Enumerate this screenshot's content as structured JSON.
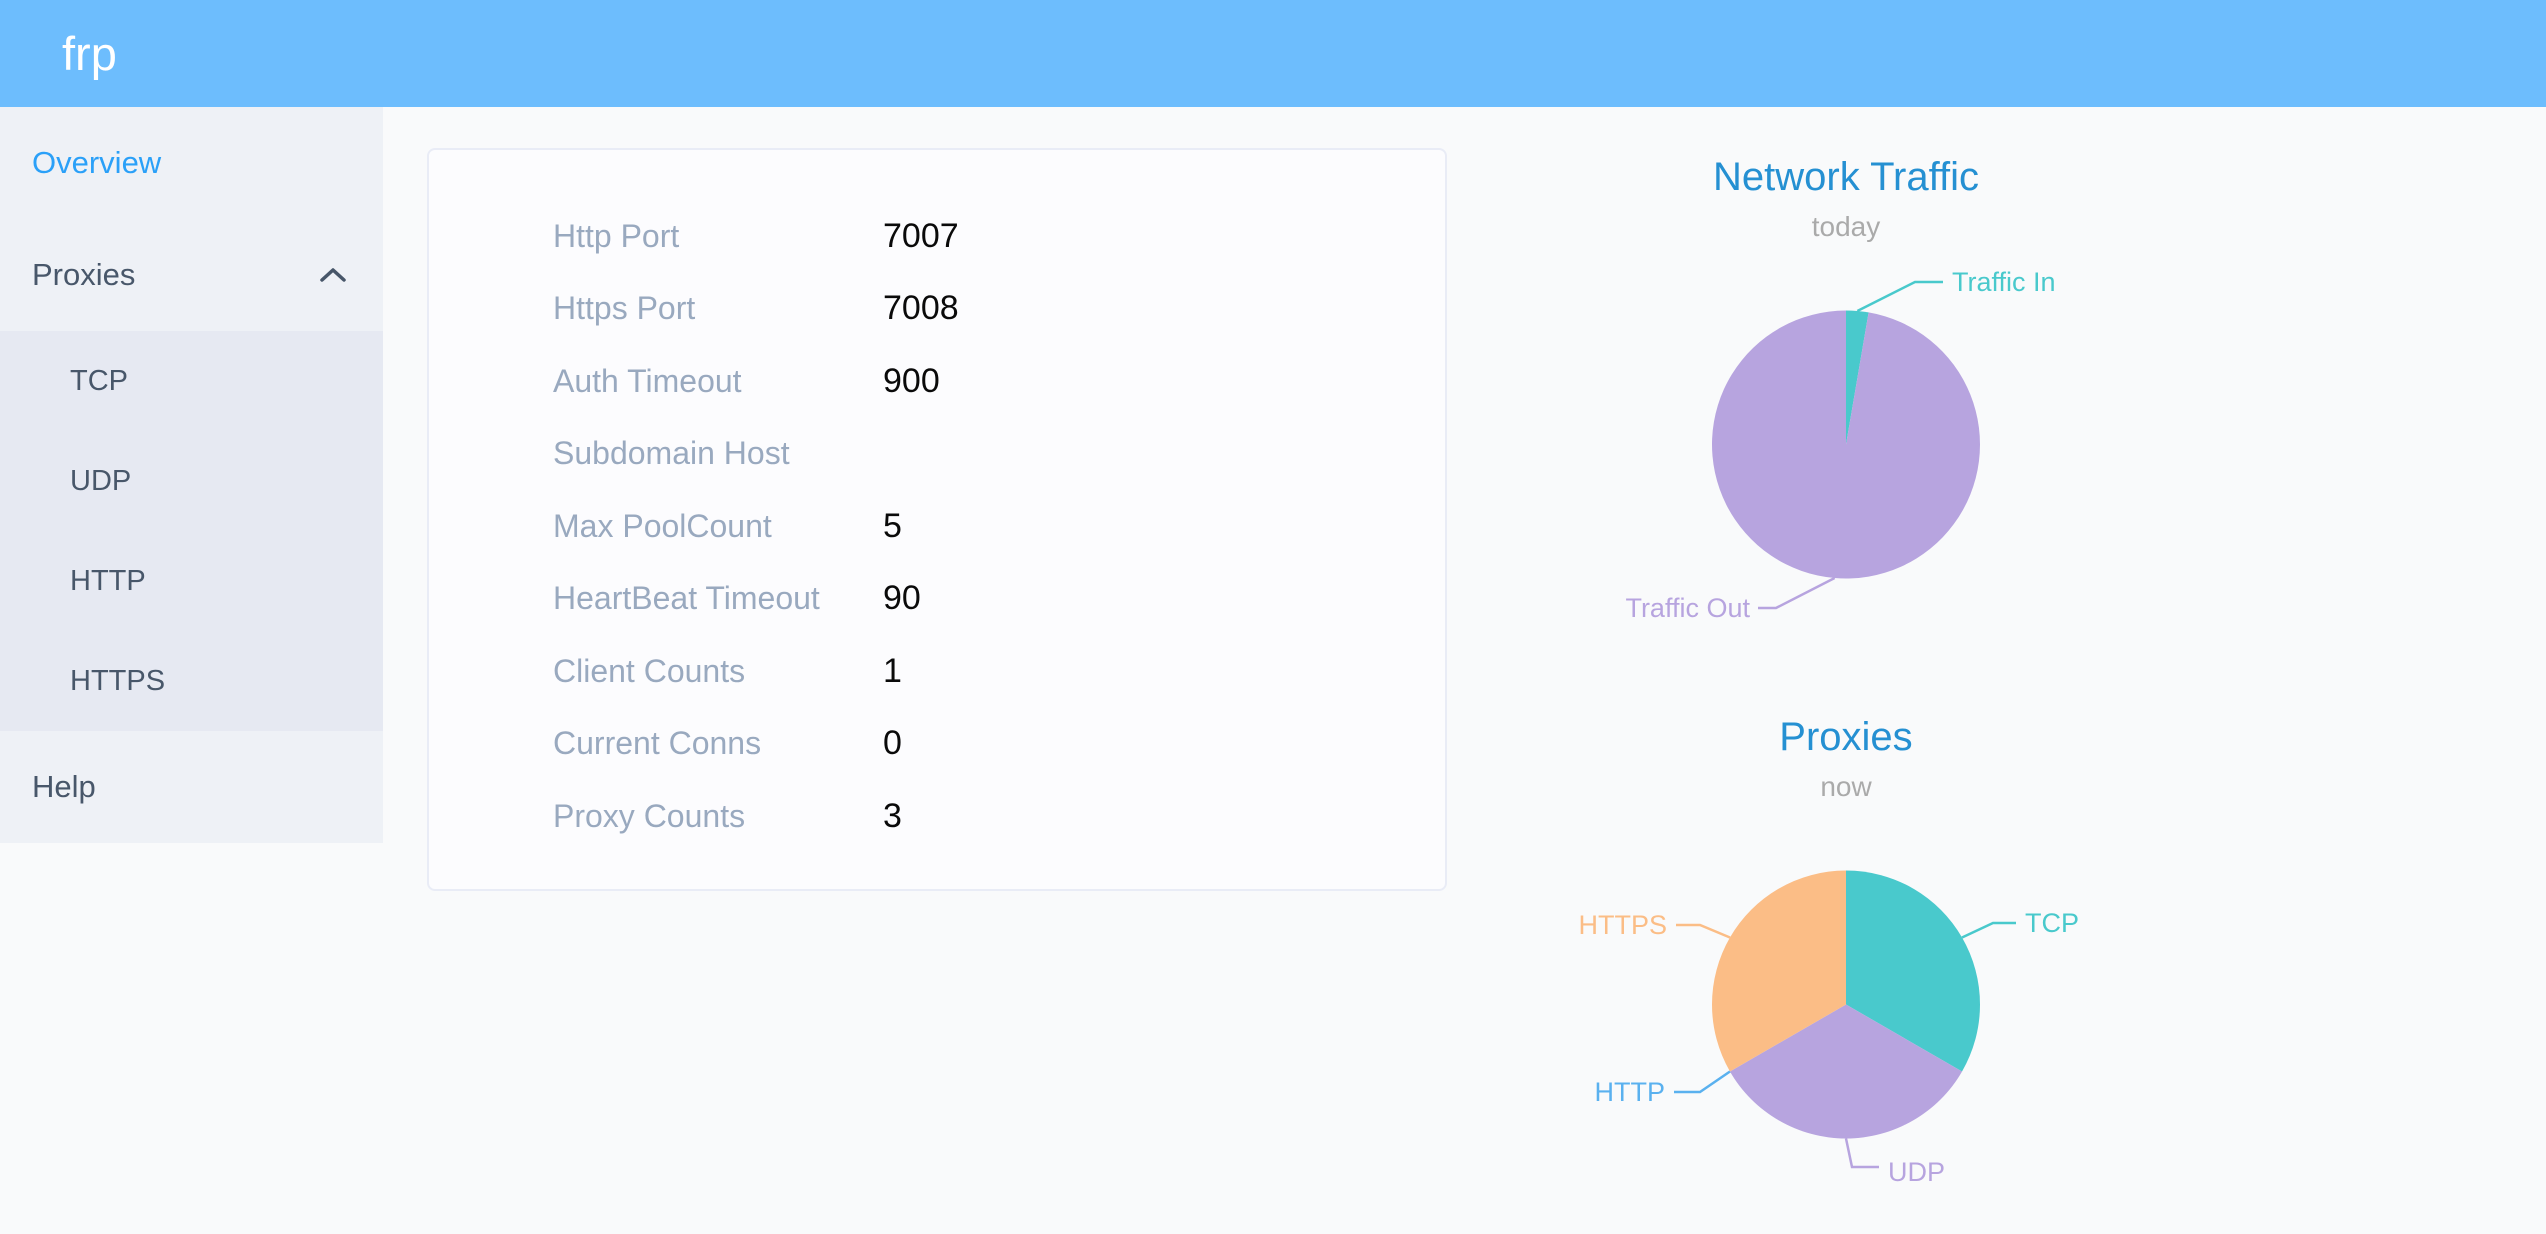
{
  "header": {
    "logo": "frp"
  },
  "sidebar": {
    "items": [
      {
        "label": "Overview",
        "active": true
      },
      {
        "label": "Proxies",
        "expanded": true
      },
      {
        "label": "Help"
      }
    ],
    "proxy_types": [
      "TCP",
      "UDP",
      "HTTP",
      "HTTPS"
    ]
  },
  "server_info": {
    "rows": [
      {
        "label": "Http Port",
        "value": "7007"
      },
      {
        "label": "Https Port",
        "value": "7008"
      },
      {
        "label": "Auth Timeout",
        "value": "900"
      },
      {
        "label": "Subdomain Host",
        "value": ""
      },
      {
        "label": "Max PoolCount",
        "value": "5"
      },
      {
        "label": "HeartBeat Timeout",
        "value": "90"
      },
      {
        "label": "Client Counts",
        "value": "1"
      },
      {
        "label": "Current Conns",
        "value": "0"
      },
      {
        "label": "Proxy Counts",
        "value": "3"
      }
    ]
  },
  "chart_data": [
    {
      "type": "pie",
      "title": "Network Traffic",
      "subtitle": "today",
      "legend_position": "none",
      "slices": [
        {
          "label": "Traffic In",
          "value": 2.7,
          "color": "#49c9cc"
        },
        {
          "label": "Traffic Out",
          "value": 97.3,
          "color": "#b7a4df"
        }
      ]
    },
    {
      "type": "pie",
      "title": "Proxies",
      "subtitle": "now",
      "legend_position": "none",
      "slices": [
        {
          "label": "TCP",
          "value": 1,
          "color": "#49c9cc"
        },
        {
          "label": "UDP",
          "value": 1,
          "color": "#b7a4df"
        },
        {
          "label": "HTTP",
          "value": 0,
          "color": "#5ab1ef"
        },
        {
          "label": "HTTPS",
          "value": 1,
          "color": "#fbbd86"
        }
      ]
    }
  ],
  "colors": {
    "header_background": "#6dbdfd",
    "sidebar_background": "#eef1f6",
    "submenu_background": "#e6e9f2",
    "active_menu_item": "#2aa0f8",
    "menu_text": "#48576a",
    "chart_title": "#2590d2",
    "chart_subtitle": "#aaaaaa",
    "info_label": "#99a9bf",
    "info_value": "#0a0a0a"
  }
}
